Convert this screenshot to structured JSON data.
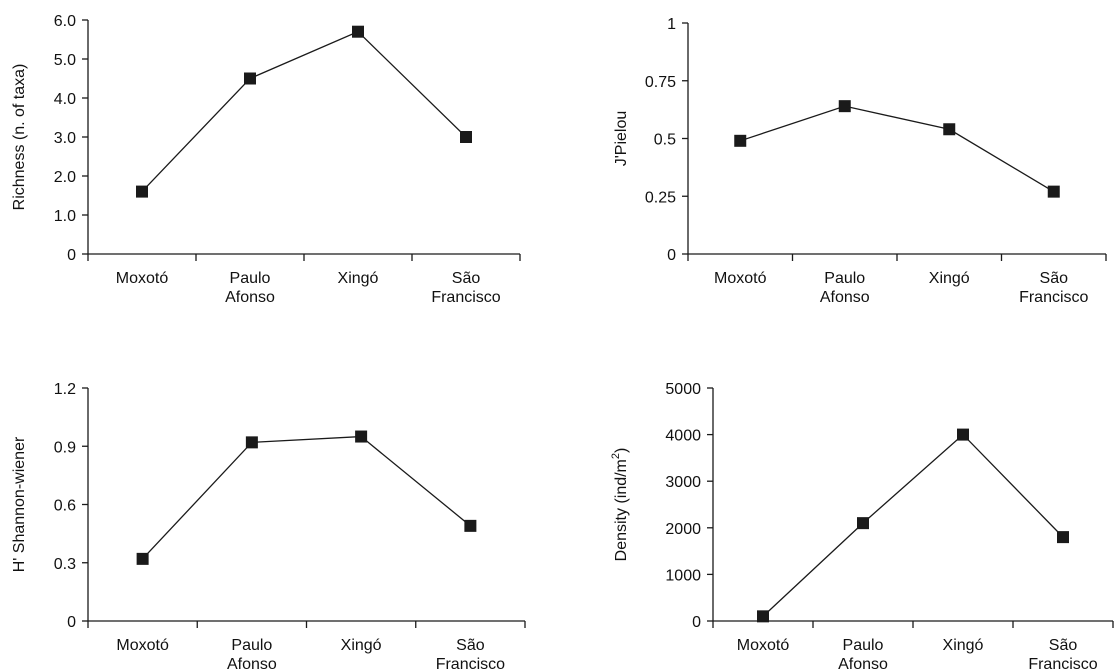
{
  "chart_data": [
    {
      "type": "line",
      "categories": [
        "Moxotó",
        "Paulo Afonso",
        "Xingó",
        "São Francisco"
      ],
      "ylabel": "Richness (n. of taxa)",
      "ylabel_sup": "",
      "ylabel_tail": "",
      "ylim": [
        0,
        6
      ],
      "yticks": [
        "0",
        "1.0",
        "2.0",
        "3.0",
        "4.0",
        "5.0",
        "6.0"
      ],
      "series": [
        {
          "values": [
            1.6,
            4.5,
            5.7,
            3.0
          ]
        }
      ]
    },
    {
      "type": "line",
      "categories": [
        "Moxotó",
        "Paulo Afonso",
        "Xingó",
        "São Francisco"
      ],
      "ylabel": "J'Pielou",
      "ylabel_sup": "",
      "ylabel_tail": "",
      "ylim": [
        0,
        1
      ],
      "yticks": [
        "0",
        "0.25",
        "0.5",
        "0.75",
        "1"
      ],
      "series": [
        {
          "values": [
            0.49,
            0.64,
            0.54,
            0.27
          ]
        }
      ]
    },
    {
      "type": "line",
      "categories": [
        "Moxotó",
        "Paulo Afonso",
        "Xingó",
        "São Francisco"
      ],
      "ylabel": "H' Shannon-wiener",
      "ylabel_sup": "",
      "ylabel_tail": "",
      "ylim": [
        0,
        1.2
      ],
      "yticks": [
        "0",
        "0.3",
        "0.6",
        "0.9",
        "1.2"
      ],
      "series": [
        {
          "values": [
            0.32,
            0.92,
            0.95,
            0.49
          ]
        }
      ]
    },
    {
      "type": "line",
      "categories": [
        "Moxotó",
        "Paulo Afonso",
        "Xingó",
        "São Francisco"
      ],
      "ylabel": "Density (ind/m",
      "ylabel_sup": "2",
      "ylabel_tail": ")",
      "ylim": [
        0,
        5000
      ],
      "yticks": [
        "0",
        "1000",
        "2000",
        "3000",
        "4000",
        "5000"
      ],
      "series": [
        {
          "values": [
            100,
            2100,
            4000,
            1800
          ]
        }
      ]
    }
  ],
  "style": {
    "line_color": "#1a1a1a",
    "marker_color": "#1a1a1a",
    "marker": "square"
  }
}
